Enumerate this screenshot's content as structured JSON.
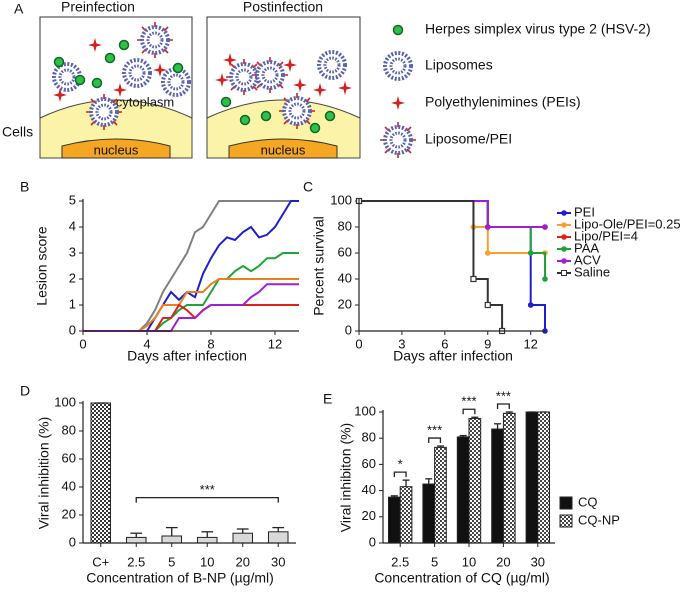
{
  "schematic": {
    "panel": "A",
    "titles": [
      "Preinfection",
      "Postinfection"
    ],
    "cells": "Cells",
    "cytoplasm": "cytoplasm",
    "nucleus": [
      "nucleus",
      "nucleus"
    ],
    "legend": [
      "Herpes simplex virus type 2 (HSV-2)",
      "Liposomes",
      "Polyethylenimines (PEIs)",
      "Liposome/PEI"
    ]
  },
  "chart_data": [
    {
      "type": "line",
      "panel": "B",
      "ylabel": "Lesion score",
      "xlabel": "Days after infection",
      "xlim": [
        0,
        13.5
      ],
      "xticks": [
        0,
        4,
        8,
        12
      ],
      "ylim": [
        0,
        5
      ],
      "yticks": [
        0,
        1,
        2,
        3,
        4,
        5
      ],
      "x": [
        0,
        3.5,
        4,
        4.5,
        5,
        5.5,
        6,
        6.5,
        7,
        7.5,
        8,
        8.5,
        9,
        9.5,
        10,
        10.5,
        11,
        11.5,
        12,
        12.5,
        13,
        13.5
      ],
      "series": [
        {
          "color": "#808080",
          "values": [
            0,
            0,
            0.3,
            0.8,
            1.5,
            2,
            2.5,
            3,
            3.8,
            4,
            4.5,
            5,
            5,
            5,
            5,
            5,
            5,
            5,
            5,
            5,
            5,
            5
          ]
        },
        {
          "color": "#1f1fd0",
          "values": [
            0,
            0,
            0,
            0.5,
            1,
            1.5,
            1.2,
            1.5,
            1.3,
            2.2,
            2.8,
            3.3,
            3.6,
            3.5,
            3.8,
            4,
            3.6,
            3.7,
            4,
            4.5,
            5,
            5
          ]
        },
        {
          "color": "#22a33a",
          "values": [
            0,
            0,
            0,
            0,
            0.3,
            0.5,
            0.8,
            1,
            1,
            1,
            1.5,
            2,
            2,
            2.3,
            2.5,
            2.3,
            2.5,
            2.8,
            2.8,
            3,
            3,
            3
          ]
        },
        {
          "color": "#f07f1a",
          "values": [
            0,
            0,
            0.2,
            0.5,
            1,
            1,
            1,
            1.5,
            1.5,
            1.5,
            1.8,
            2,
            2,
            2,
            2,
            2,
            2,
            2,
            2,
            2,
            2,
            2
          ]
        },
        {
          "color": "#e0201a",
          "values": [
            0,
            0,
            0,
            0,
            0.5,
            0.5,
            1,
            0.8,
            0.5,
            0.8,
            1,
            1,
            1,
            1,
            1,
            1,
            1,
            1,
            1,
            1,
            1,
            1
          ]
        },
        {
          "color": "#a020d0",
          "values": [
            0,
            0,
            0,
            0,
            0,
            0,
            0.5,
            0.5,
            0.5,
            0.8,
            1,
            1,
            1,
            1,
            1,
            1.3,
            1.5,
            1.8,
            1.8,
            1.8,
            1.8,
            1.8
          ]
        }
      ]
    },
    {
      "type": "line",
      "step": true,
      "panel": "C",
      "ylabel": "Percent survival",
      "xlabel": "Days after infection",
      "xlim": [
        0,
        13
      ],
      "xticks": [
        0,
        3,
        6,
        9,
        12
      ],
      "ylim": [
        0,
        100
      ],
      "yticks": [
        0,
        20,
        40,
        60,
        80,
        100
      ],
      "legend": "right",
      "series": [
        {
          "name": "PEI",
          "color": "#1f1fd0",
          "marker": "circle",
          "x": [
            0,
            9,
            12,
            13
          ],
          "values": [
            100,
            80,
            20,
            0
          ]
        },
        {
          "name": "Lipo-Ole/PEI=0.25",
          "color": "#f5a030",
          "marker": "circle",
          "x": [
            0,
            8,
            9,
            13
          ],
          "values": [
            100,
            80,
            60,
            60
          ]
        },
        {
          "name": "Lipo/PEI=4",
          "color": "#e0201a",
          "marker": "circle",
          "x": [
            0,
            9,
            13
          ],
          "values": [
            100,
            80,
            80
          ]
        },
        {
          "name": "PAA",
          "color": "#22a33a",
          "marker": "circle",
          "x": [
            0,
            9,
            12,
            13
          ],
          "values": [
            100,
            80,
            60,
            40
          ]
        },
        {
          "name": "ACV",
          "color": "#a020d0",
          "marker": "circle",
          "x": [
            0,
            9,
            13
          ],
          "values": [
            100,
            80,
            80
          ]
        },
        {
          "name": "Saline",
          "color": "#333333",
          "marker": "square-open",
          "x": [
            0,
            8,
            9,
            10
          ],
          "values": [
            100,
            40,
            20,
            0
          ]
        }
      ]
    },
    {
      "type": "bar",
      "panel": "D",
      "ylabel": "Viral inhibition (%)",
      "xlabel": "Concentration of B-NP (µg/ml)",
      "ylim": [
        0,
        100
      ],
      "yticks": [
        0,
        20,
        40,
        60,
        80,
        100
      ],
      "categories": [
        "C+",
        "2.5",
        "5",
        "10",
        "20",
        "30"
      ],
      "values": [
        100,
        4,
        5,
        4,
        7,
        8
      ],
      "errors": [
        0,
        3,
        6,
        4,
        3,
        3
      ],
      "colors": [
        "#333333",
        "#d9d9d9",
        "#d9d9d9",
        "#d9d9d9",
        "#d9d9d9",
        "#d9d9d9"
      ],
      "hatched": [
        true,
        false,
        false,
        false,
        false,
        false
      ],
      "annotations": [
        "***"
      ]
    },
    {
      "type": "bar",
      "panel": "E",
      "ylabel": "Viral inhibiton (%)",
      "xlabel": "Concentration of CQ (µg/ml)",
      "ylim": [
        0,
        100
      ],
      "yticks": [
        0,
        20,
        40,
        60,
        80,
        100
      ],
      "legend": "right",
      "categories": [
        "2.5",
        "5",
        "10",
        "20",
        "30"
      ],
      "series": [
        {
          "name": "CQ",
          "color": "#111111",
          "hatched": false,
          "values": [
            35,
            45,
            81,
            87,
            100
          ],
          "errors": [
            1,
            4,
            1,
            4,
            0
          ]
        },
        {
          "name": "CQ-NP",
          "color": "#444444",
          "hatched": true,
          "values": [
            43,
            73,
            95,
            99,
            100
          ],
          "errors": [
            5,
            1,
            1,
            1,
            0
          ]
        }
      ],
      "annotations": [
        "*",
        "***",
        "***",
        "***"
      ]
    }
  ]
}
